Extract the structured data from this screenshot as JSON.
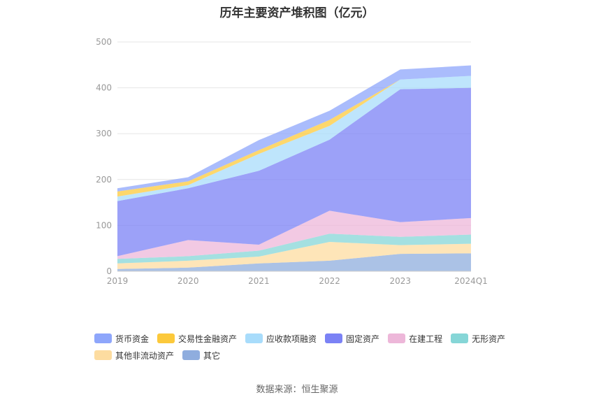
{
  "title": "历年主要资产堆积图（亿元）",
  "source": "数据来源：恒生聚源",
  "colors": {
    "货币资金": "#8ea6fb",
    "交易性金融资产": "#fcc93b",
    "应收款项融资": "#a8dcfb",
    "固定资产": "#7b82f5",
    "在建工程": "#edb7d9",
    "无形资产": "#86d6d7",
    "其他非流动资产": "#fddca0",
    "其它": "#8fadde"
  },
  "chart_data": {
    "type": "area",
    "stacked": true,
    "title": "历年主要资产堆积图（亿元）",
    "x": [
      "2019",
      "2020",
      "2021",
      "2022",
      "2023",
      "2024Q1"
    ],
    "ylim": [
      0,
      500
    ],
    "yticks": [
      "0",
      "100",
      "200",
      "300",
      "400",
      "500"
    ],
    "grid": true,
    "legend_position": "bottom",
    "series": [
      {
        "name": "其它",
        "values": [
          5,
          8,
          17,
          23,
          38,
          39
        ]
      },
      {
        "name": "其他非流动资产",
        "values": [
          12,
          15,
          15,
          41,
          19,
          21
        ]
      },
      {
        "name": "无形资产",
        "values": [
          10,
          10,
          13,
          18,
          18,
          20
        ]
      },
      {
        "name": "在建工程",
        "values": [
          6,
          35,
          13,
          50,
          32,
          36
        ]
      },
      {
        "name": "固定资产",
        "values": [
          120,
          113,
          161,
          155,
          290,
          284
        ]
      },
      {
        "name": "应收款项融资",
        "values": [
          10,
          7,
          37,
          30,
          21,
          26
        ]
      },
      {
        "name": "交易性金融资产",
        "values": [
          11,
          8,
          8,
          13,
          0,
          0
        ]
      },
      {
        "name": "货币资金",
        "values": [
          7,
          9,
          22,
          20,
          22,
          23
        ]
      }
    ]
  },
  "legend": {
    "row1": [
      "货币资金",
      "交易性金融资产",
      "应收款项融资",
      "固定资产",
      "在建工程",
      "无形资产"
    ],
    "row2": [
      "其他非流动资产",
      "其它"
    ]
  }
}
